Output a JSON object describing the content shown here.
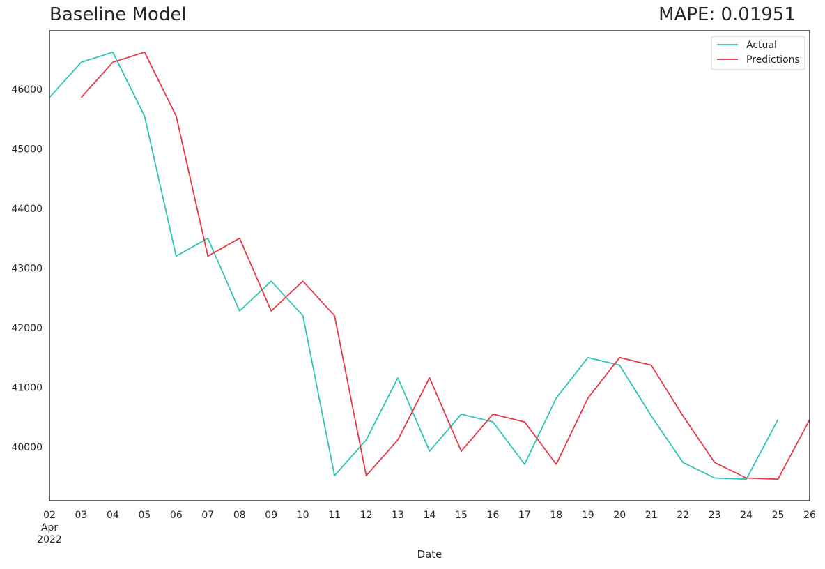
{
  "chart_data": {
    "type": "line",
    "title": "Baseline Model",
    "subtitle": "MAPE: 0.01951",
    "xlabel": "Date",
    "ylabel": "",
    "x_tick_labels": [
      "02",
      "03",
      "04",
      "05",
      "06",
      "07",
      "08",
      "09",
      "10",
      "11",
      "12",
      "13",
      "14",
      "15",
      "16",
      "17",
      "18",
      "19",
      "20",
      "21",
      "22",
      "23",
      "24",
      "25",
      "26"
    ],
    "x_first_tick_sublabels": [
      "Apr",
      "2022"
    ],
    "x": [
      "2022-04-02",
      "2022-04-03",
      "2022-04-04",
      "2022-04-05",
      "2022-04-06",
      "2022-04-07",
      "2022-04-08",
      "2022-04-09",
      "2022-04-10",
      "2022-04-11",
      "2022-04-12",
      "2022-04-13",
      "2022-04-14",
      "2022-04-15",
      "2022-04-16",
      "2022-04-17",
      "2022-04-18",
      "2022-04-19",
      "2022-04-20",
      "2022-04-21",
      "2022-04-22",
      "2022-04-23",
      "2022-04-24",
      "2022-04-25",
      "2022-04-26"
    ],
    "y_ticks": [
      40000,
      41000,
      42000,
      43000,
      44000,
      45000,
      46000
    ],
    "ylim": [
      39100,
      46980
    ],
    "grid": false,
    "legend_position": "top-right",
    "series": [
      {
        "name": "Actual",
        "color": "#2ec4b6",
        "values": [
          45860,
          46450,
          46620,
          45550,
          43200,
          43500,
          42280,
          42780,
          42200,
          39520,
          40120,
          41160,
          39930,
          40550,
          40420,
          39710,
          40820,
          41500,
          41370,
          40520,
          39740,
          39480,
          39460,
          40460,
          null
        ]
      },
      {
        "name": "Predictions",
        "color": "#e63946",
        "values": [
          null,
          45860,
          46450,
          46620,
          45550,
          43200,
          43500,
          42280,
          42780,
          42200,
          39520,
          40120,
          41160,
          39930,
          40550,
          40420,
          39710,
          40820,
          41500,
          41370,
          40520,
          39740,
          39480,
          39460,
          40460
        ]
      }
    ]
  }
}
